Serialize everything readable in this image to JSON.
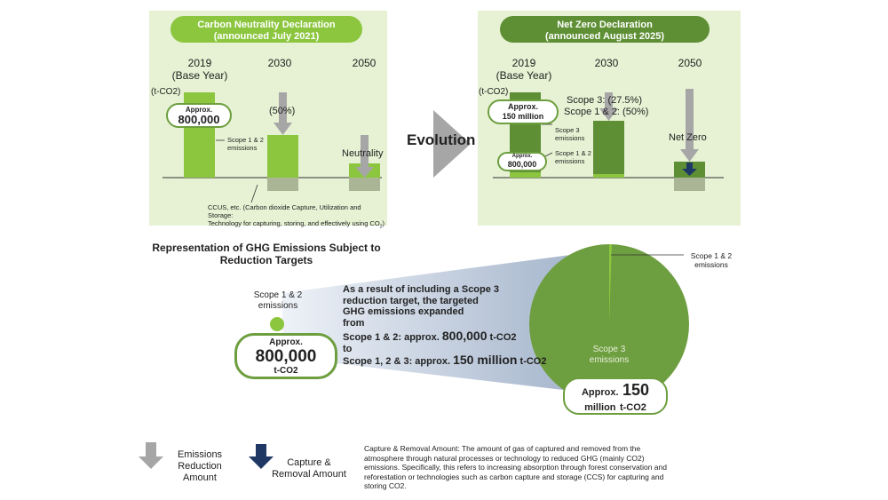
{
  "left_panel": {
    "title_line1": "Carbon Neutrality Declaration",
    "title_line2": "(announced July 2021)",
    "year_2019": "2019",
    "base_year": "(Base Year)",
    "year_2030": "2030",
    "year_2050": "2050",
    "unit": "(t-CO2)",
    "approx_label": "Approx.",
    "approx_value": "800,000",
    "reduction_pct": "(50%)",
    "scope12_label_1": "Scope 1 & 2",
    "scope12_label_2": "emissions",
    "neutrality": "Neutrality",
    "ccus_line1": "CCUS, etc. (Carbon dioxide Capture, Utilization and Storage:",
    "ccus_line2": "Technology for capturing, storing, and effectively using CO",
    "ccus_sub": "2",
    "ccus_end": ")"
  },
  "evolution": "Evolution",
  "right_panel": {
    "title_line1": "Net Zero Declaration",
    "title_line2": "(announced August 2025)",
    "year_2019": "2019",
    "base_year": "(Base Year)",
    "year_2030": "2030",
    "year_2050": "2050",
    "unit": "(t-CO2)",
    "approx_label": "Approx.",
    "approx_value": "150 million",
    "approx_small_label": "Approx.",
    "approx_small_value": "800,000",
    "scope3_pct": "Scope 3: (27.5%)",
    "scope12_pct": "Scope 1 & 2: (50%)",
    "scope3_label_1": "Scope 3",
    "scope3_label_2": "emissions",
    "scope12_label_1": "Scope 1 & 2",
    "scope12_label_2": "emissions",
    "net_zero": "Net Zero"
  },
  "bottom": {
    "heading_line1": "Representation of GHG Emissions Subject to",
    "heading_line2": "Reduction Targets",
    "small_scope_1": "Scope 1 & 2",
    "small_scope_2": "emissions",
    "small_approx": "Approx.",
    "small_value": "800,000",
    "small_unit": "t-CO2",
    "explain_1": "As a result of including a Scope 3",
    "explain_2": "reduction target, the targeted",
    "explain_3": "GHG emissions expanded",
    "explain_4": "from",
    "from_prefix": "Scope 1 & 2: approx.",
    "from_value": "800,000",
    "from_unit": "t-CO2",
    "to": "to",
    "to_prefix": "Scope 1, 2 & 3: approx.",
    "to_value": "150 million",
    "to_unit": "t-CO2",
    "pie_scope12_1": "Scope 1 & 2",
    "pie_scope12_2": "emissions",
    "pie_scope3_1": "Scope 3",
    "pie_scope3_2": "emissions",
    "big_approx": "Approx.",
    "big_value": "150",
    "big_million": "million",
    "big_unit": "t-CO2"
  },
  "legend": {
    "reduction_1": "Emissions",
    "reduction_2": "Reduction",
    "reduction_3": "Amount",
    "capture_1": "Capture &",
    "capture_2": "Removal Amount",
    "definition_1": "Capture & Removal Amount: The amount of gas of captured and removed from the",
    "definition_2": "atmosphere through natural processes or technology to reduced GHG (mainly CO2)",
    "definition_3": "emissions. Specifically, this refers to increasing absorption through forest conservation and",
    "definition_4": "reforestation or technologies such as carbon capture and storage (CCS) for capturing and",
    "definition_5": "storing CO2."
  },
  "colors": {
    "panel_bg": "#e6f2d3",
    "light_green": "#8cc63f",
    "dark_green": "#5e8f34",
    "gray_arrow": "#a6a6a6",
    "navy_arrow": "#1f3864"
  }
}
